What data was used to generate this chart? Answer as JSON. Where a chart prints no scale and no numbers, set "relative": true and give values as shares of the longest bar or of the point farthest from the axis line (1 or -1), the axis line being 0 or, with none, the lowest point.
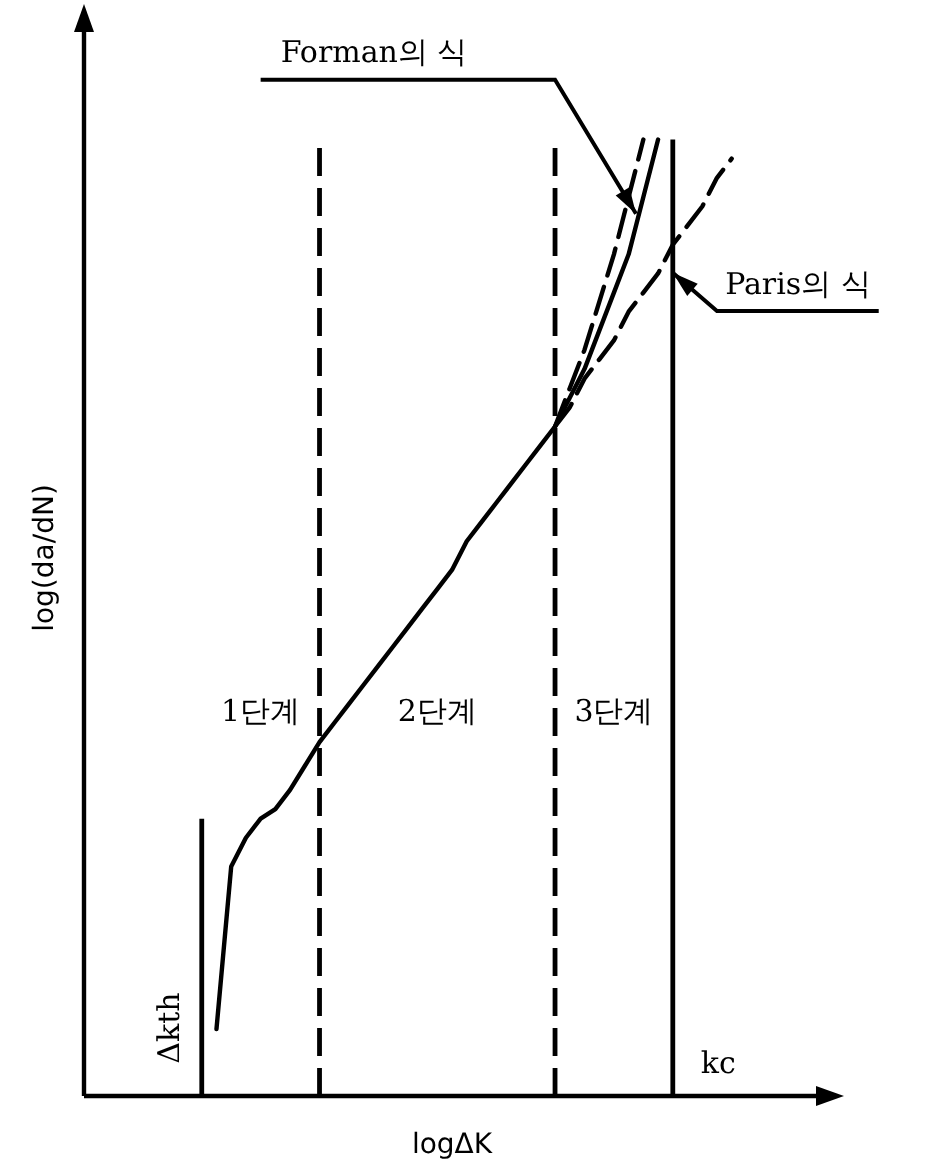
{
  "chart_data": {
    "type": "line",
    "relative": true,
    "xlabel": "logΔK",
    "ylabel": "log(da/dN)",
    "categories": [
      null,
      null,
      null,
      null,
      null,
      null,
      null,
      null,
      null,
      null,
      null,
      null,
      null,
      null,
      null,
      null,
      null,
      null,
      null,
      null,
      null,
      null,
      null,
      null,
      null,
      null,
      null,
      null,
      null,
      null,
      null,
      null,
      null,
      null,
      null,
      null,
      null,
      null,
      null,
      null,
      null,
      null,
      null,
      null,
      null,
      null,
      null,
      null,
      null,
      null,
      null
    ],
    "series": [
      {
        "color": "#000000",
        "line_style": "solid",
        "values": [
          null,
          null,
          null,
          null,
          null,
          null,
          null,
          null,
          null,
          0.07,
          0.24,
          0.27,
          0.29,
          0.3,
          0.32,
          0.345,
          0.37,
          0.39,
          0.41,
          0.43,
          0.45,
          0.47,
          0.49,
          0.51,
          0.53,
          0.55,
          0.58,
          0.6,
          0.62,
          0.64,
          0.66,
          0.68,
          0.7,
          0.73,
          0.76,
          0.8,
          0.84,
          0.88,
          0.94,
          1.0,
          null,
          null,
          null,
          null,
          null,
          null,
          null,
          null,
          null,
          null,
          null
        ]
      },
      {
        "color": "#000000",
        "line_style": "dashed",
        "values": [
          null,
          null,
          null,
          null,
          null,
          null,
          null,
          null,
          null,
          null,
          null,
          null,
          null,
          null,
          null,
          null,
          null,
          null,
          null,
          null,
          null,
          null,
          null,
          null,
          null,
          null,
          null,
          null,
          null,
          null,
          null,
          null,
          0.7,
          0.74,
          0.78,
          0.83,
          0.88,
          0.94,
          1.0,
          null,
          null,
          null,
          null,
          null,
          null,
          null,
          null,
          null,
          null,
          null,
          null
        ]
      },
      {
        "color": "#000000",
        "line_style": "dashed",
        "values": [
          null,
          null,
          null,
          null,
          null,
          null,
          null,
          null,
          null,
          null,
          null,
          null,
          null,
          null,
          null,
          null,
          null,
          null,
          null,
          null,
          null,
          null,
          null,
          null,
          null,
          null,
          null,
          null,
          null,
          null,
          null,
          null,
          0.7,
          0.72,
          0.75,
          0.77,
          0.79,
          0.82,
          0.84,
          0.86,
          0.89,
          0.91,
          0.93,
          0.96,
          0.98,
          null,
          null,
          null,
          null,
          null,
          null
        ]
      }
    ],
    "annotations": [
      "1단계",
      "2단계",
      "3단계",
      "Δkth",
      "kc",
      "Forman의 식",
      "Paris의 식"
    ]
  }
}
